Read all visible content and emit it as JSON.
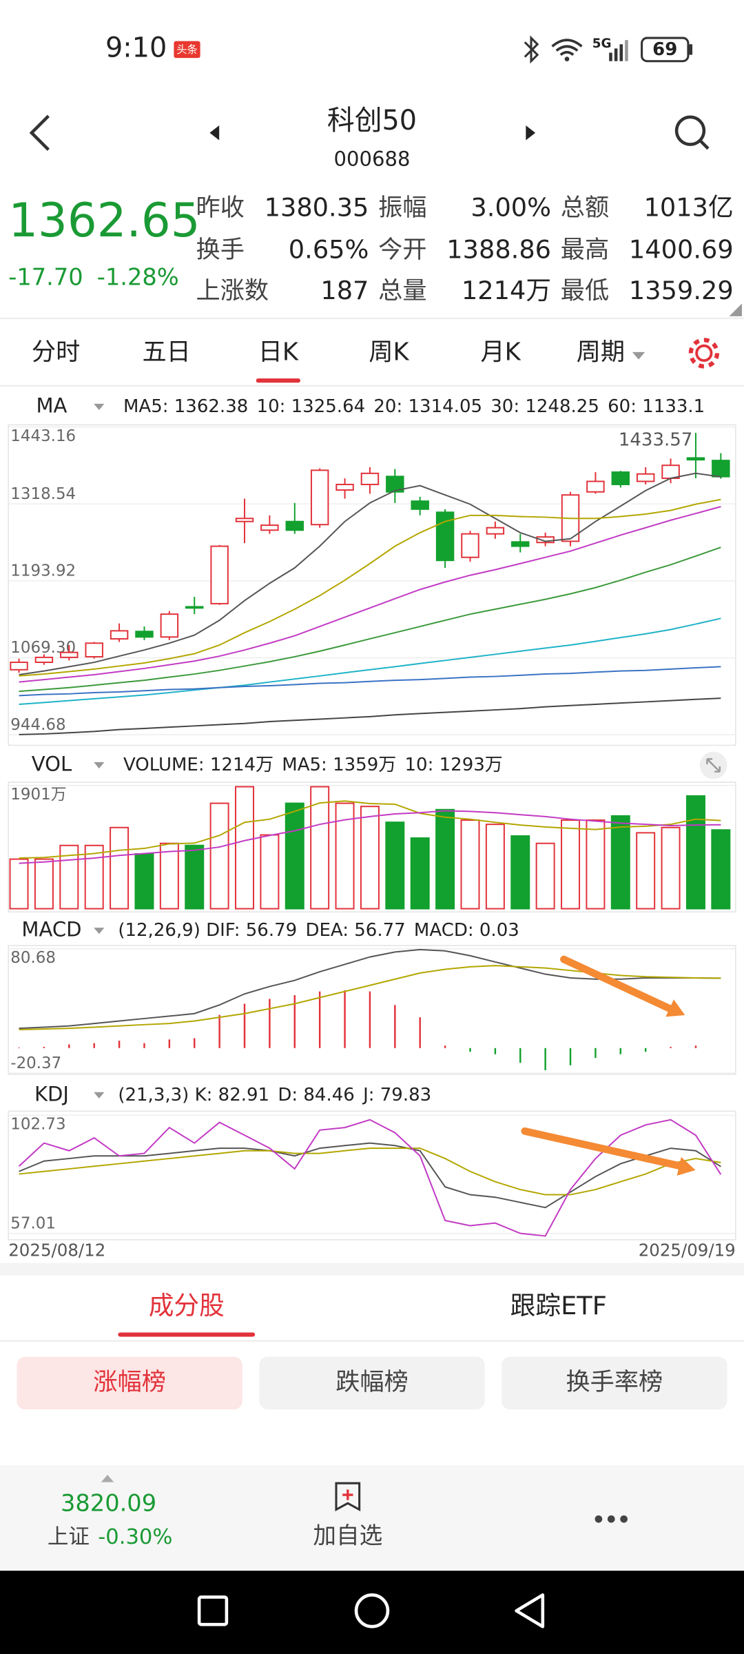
{
  "status_bar": {
    "time": "9:10",
    "badge": "头条",
    "network": "5G",
    "battery": "69"
  },
  "header": {
    "title": "科创50",
    "code": "000688"
  },
  "quote": {
    "price": "1362.65",
    "change": "-17.70",
    "change_pct": "-1.28%",
    "stats": [
      {
        "label": "昨收",
        "value": "1380.35",
        "color": "#222222"
      },
      {
        "label": "振幅",
        "value": "3.00%",
        "color": "#e2323a"
      },
      {
        "label": "总额",
        "value": "1013亿",
        "color": "#222222"
      },
      {
        "label": "换手",
        "value": "0.65%",
        "color": "#222222"
      },
      {
        "label": "今开",
        "value": "1388.86",
        "color": "#e2323a"
      },
      {
        "label": "最高",
        "value": "1400.69",
        "color": "#e2323a"
      },
      {
        "label": "上涨数",
        "value": "187",
        "color": "#e2323a"
      },
      {
        "label": "总量",
        "value": "1214万",
        "color": "#222222"
      },
      {
        "label": "最低",
        "value": "1359.29",
        "color": "#12a12e"
      }
    ]
  },
  "tabs": [
    "分时",
    "五日",
    "日K",
    "周K",
    "月K",
    "周期"
  ],
  "active_tab": 2,
  "chart_data": [
    {
      "type": "candlestick",
      "indicator": "MA",
      "legend": [
        {
          "text": "MA5: 1362.38",
          "color": "#555555"
        },
        {
          "text": "10: 1325.64",
          "color": "#b3a600"
        },
        {
          "text": "20: 1314.05",
          "color": "#c23ac4"
        },
        {
          "text": "30: 1248.25",
          "color": "#3b9a3b"
        },
        {
          "text": "60: 1133.1",
          "color": "#1fb2c8"
        }
      ],
      "up_color": "#e2323a",
      "down_color": "#12a12e",
      "open": [
        1050,
        1062,
        1070,
        1071,
        1100,
        1112,
        1103,
        1152,
        1157,
        1290,
        1276,
        1290,
        1285,
        1341,
        1350,
        1363,
        1323,
        1305,
        1232,
        1270,
        1257,
        1256,
        1258,
        1338,
        1370,
        1355,
        1360,
        1393,
        1388.86
      ],
      "high": [
        1068,
        1075,
        1090,
        1095,
        1125,
        1120,
        1145,
        1168,
        1252,
        1327,
        1300,
        1320,
        1376,
        1360,
        1378,
        1375,
        1330,
        1310,
        1275,
        1290,
        1270,
        1272,
        1338,
        1370,
        1372,
        1378,
        1392,
        1433.57,
        1400.69
      ],
      "low": [
        1045,
        1058,
        1065,
        1068,
        1095,
        1098,
        1098,
        1140,
        1155,
        1255,
        1270,
        1270,
        1280,
        1327,
        1335,
        1320,
        1300,
        1215,
        1225,
        1262,
        1240,
        1250,
        1250,
        1335,
        1345,
        1350,
        1352,
        1360,
        1359.29
      ],
      "close": [
        1062,
        1070,
        1078,
        1093,
        1113,
        1103,
        1140,
        1150,
        1250,
        1295,
        1284,
        1276,
        1373,
        1350,
        1368,
        1338,
        1310,
        1227,
        1270,
        1280,
        1250,
        1265,
        1333,
        1355,
        1350,
        1367,
        1381,
        1390,
        1362.65
      ],
      "series": [
        {
          "color": "#555555",
          "values": [
            1042,
            1048,
            1055,
            1062,
            1072,
            1082,
            1093,
            1106,
            1130,
            1162,
            1190,
            1215,
            1250,
            1290,
            1320,
            1340,
            1348,
            1333,
            1318,
            1295,
            1272,
            1258,
            1262,
            1290,
            1315,
            1340,
            1360,
            1368,
            1362.38
          ]
        },
        {
          "color": "#b3a600",
          "values": [
            1040,
            1043,
            1047,
            1051,
            1056,
            1061,
            1068,
            1076,
            1090,
            1110,
            1128,
            1148,
            1170,
            1195,
            1222,
            1250,
            1272,
            1290,
            1300,
            1300,
            1298,
            1297,
            1295,
            1295,
            1298,
            1302,
            1308,
            1318,
            1325.64
          ]
        },
        {
          "color": "#c23ac4",
          "values": [
            1030,
            1034,
            1038,
            1042,
            1047,
            1052,
            1058,
            1064,
            1072,
            1082,
            1093,
            1105,
            1120,
            1135,
            1150,
            1165,
            1180,
            1192,
            1203,
            1212,
            1222,
            1232,
            1242,
            1255,
            1268,
            1280,
            1292,
            1303,
            1314.05
          ]
        },
        {
          "color": "#3b9a3b",
          "values": [
            1015,
            1018,
            1021,
            1025,
            1029,
            1033,
            1038,
            1043,
            1049,
            1056,
            1063,
            1071,
            1080,
            1090,
            1100,
            1110,
            1120,
            1130,
            1140,
            1148,
            1156,
            1164,
            1173,
            1183,
            1195,
            1208,
            1220,
            1234,
            1248.25
          ]
        },
        {
          "color": "#1fb2c8",
          "values": [
            994,
            997,
            1000,
            1003,
            1006,
            1009,
            1013,
            1017,
            1021,
            1025,
            1030,
            1035,
            1040,
            1045,
            1050,
            1055,
            1060,
            1065,
            1070,
            1075,
            1080,
            1085,
            1090,
            1096,
            1102,
            1108,
            1115,
            1124,
            1133.1
          ]
        },
        {
          "color": "#3a72c4",
          "values": [
            1008,
            1010,
            1011,
            1013,
            1014,
            1016,
            1018,
            1019,
            1021,
            1023,
            1024,
            1026,
            1028,
            1029,
            1031,
            1033,
            1034,
            1036,
            1038,
            1039,
            1041,
            1043,
            1044,
            1046,
            1048,
            1049,
            1051,
            1053,
            1055
          ]
        },
        {
          "color": "#444444",
          "values": [
            945,
            946,
            948,
            950,
            953,
            955,
            957,
            959,
            961,
            963,
            966,
            968,
            970,
            972,
            974,
            977,
            979,
            981,
            983,
            985,
            987,
            990,
            992,
            994,
            996,
            998,
            1000,
            1002,
            1004
          ]
        }
      ],
      "annotation": 1433.57,
      "ylim": [
        944.68,
        1443.16
      ],
      "yticks": [
        944.68,
        {
          "value": 1069.3,
          "label": "1069.30"
        },
        1193.92,
        1318.54,
        1443.16
      ]
    },
    {
      "type": "bar",
      "indicator": "VOL",
      "legend": [
        {
          "text": "VOLUME: 1214万",
          "color": "#555555"
        },
        {
          "text": "MA5: 1359万",
          "color": "#b3a600"
        },
        {
          "text": "10: 1293万",
          "color": "#c23ac4"
        }
      ],
      "values": [
        764,
        764,
        975,
        975,
        1251,
        845,
        1007,
        975,
        1625,
        1880,
        1137,
        1625,
        1880,
        1625,
        1576,
        1332,
        1089,
        1527,
        1365,
        1300,
        1121,
        1007,
        1365,
        1365,
        1430,
        1170,
        1251,
        1738,
        1214
      ],
      "series": [
        {
          "color": "#b3a600",
          "values": [
            780,
            790,
            820,
            850,
            900,
            930,
            1000,
            1010,
            1130,
            1330,
            1380,
            1500,
            1630,
            1660,
            1620,
            1610,
            1470,
            1410,
            1380,
            1330,
            1290,
            1260,
            1240,
            1220,
            1260,
            1270,
            1300,
            1380,
            1359
          ]
        },
        {
          "color": "#c23ac4",
          "values": [
            700,
            720,
            750,
            780,
            820,
            850,
            880,
            900,
            950,
            1050,
            1130,
            1200,
            1300,
            1370,
            1420,
            1460,
            1480,
            1510,
            1500,
            1480,
            1450,
            1420,
            1380,
            1350,
            1320,
            1300,
            1280,
            1290,
            1293
          ]
        }
      ],
      "ylim": [
        0,
        1901
      ],
      "yticks": [
        {
          "value": 1901,
          "label": "1901万"
        }
      ]
    },
    {
      "type": "macd",
      "indicator": "MACD",
      "legend": [
        {
          "text": "(12,26,9) DIF: 56.79",
          "color": "#555555"
        },
        {
          "text": "DEA: 56.77",
          "color": "#b3a600"
        },
        {
          "text": "MACD: 0.03",
          "color": "#c23ac4"
        }
      ],
      "values": [
        0.5,
        1,
        3,
        4,
        6,
        4,
        7,
        8,
        27,
        36,
        40,
        43,
        46,
        47,
        46,
        35,
        25,
        2,
        -3,
        -5,
        -12,
        -18,
        -14,
        -8,
        -5,
        -3,
        1,
        2,
        0.03
      ],
      "series": [
        {
          "color": "#555555",
          "values": [
            16,
            17,
            18,
            20,
            22,
            24,
            26,
            28,
            35,
            44,
            50,
            55,
            62,
            68,
            74,
            78,
            80,
            79,
            75,
            70,
            65,
            60,
            57,
            56,
            56,
            57,
            57,
            57,
            56.79
          ]
        },
        {
          "color": "#b3a600",
          "values": [
            15,
            15.5,
            16,
            17,
            18,
            19,
            20,
            22,
            25,
            28,
            32,
            36,
            41,
            46,
            51,
            56,
            61,
            64,
            66,
            67,
            66,
            65,
            63,
            61,
            59,
            58,
            57.5,
            57,
            56.77
          ]
        }
      ],
      "ylim": [
        -20.37,
        80.68
      ],
      "yticks": [
        -20.37,
        80.68
      ]
    },
    {
      "type": "line",
      "indicator": "KDJ",
      "legend": [
        {
          "text": "(21,3,3) K: 82.91",
          "color": "#555555"
        },
        {
          "text": "D: 84.46",
          "color": "#b3a600"
        },
        {
          "text": "J: 79.83",
          "color": "#c23ac4"
        }
      ],
      "categories": [
        "2025/08/12",
        null,
        null,
        null,
        null,
        null,
        null,
        null,
        null,
        null,
        null,
        null,
        null,
        null,
        null,
        null,
        null,
        null,
        null,
        null,
        null,
        null,
        null,
        null,
        null,
        null,
        null,
        null,
        "2025/09/19"
      ],
      "series": [
        {
          "color": "#555555",
          "values": [
            81,
            85,
            86,
            87,
            87,
            87,
            88,
            89,
            90,
            90,
            89,
            87,
            90,
            91,
            92,
            91,
            89,
            75,
            72,
            71,
            69,
            67,
            73,
            79,
            84,
            87,
            90,
            89,
            82.91
          ]
        },
        {
          "color": "#b3a600",
          "values": [
            80,
            81,
            82,
            83,
            84,
            85,
            86,
            87,
            88,
            89,
            89,
            88,
            88,
            89,
            90,
            90,
            90,
            86,
            81,
            77,
            74,
            72,
            72,
            74,
            77,
            80,
            84,
            86,
            84.46
          ]
        },
        {
          "color": "#c23ac4",
          "values": [
            83,
            92,
            89,
            94,
            87,
            88,
            98,
            92,
            100,
            95,
            90,
            82,
            97,
            98,
            101,
            96,
            87,
            62,
            60,
            61,
            57,
            56,
            74,
            86,
            95,
            99,
            101,
            95,
            79.83
          ]
        }
      ],
      "ylim": [
        57.01,
        102.73
      ],
      "yticks": [
        57.01,
        102.73
      ]
    }
  ],
  "sub_tabs": [
    "成分股",
    "跟踪ETF"
  ],
  "rank_buttons": [
    "涨幅榜",
    "跌幅榜",
    "换手率榜"
  ],
  "bottom_bar": {
    "index_price": "3820.09",
    "index_name": "上证",
    "index_change": "-0.30%",
    "add_watch": "加自选"
  }
}
